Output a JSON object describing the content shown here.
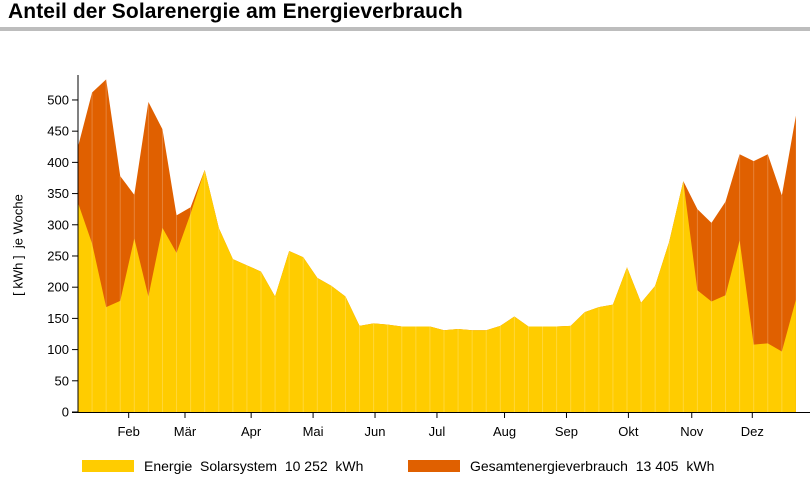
{
  "chart_data": {
    "type": "area",
    "title": "Anteil der Solarenergie am Energieverbrauch",
    "ylabel": "[ kWh ]  je Woche",
    "xlabel": "",
    "ylim": [
      0,
      540
    ],
    "yticks": [
      0,
      50,
      100,
      150,
      200,
      250,
      300,
      350,
      400,
      450,
      500
    ],
    "xlim": [
      1,
      53
    ],
    "month_ticks": [
      {
        "label": "Feb",
        "week": 4.6
      },
      {
        "label": "Mär",
        "week": 8.6
      },
      {
        "label": "Apr",
        "week": 13.3
      },
      {
        "label": "Mai",
        "week": 17.7
      },
      {
        "label": "Jun",
        "week": 22.1
      },
      {
        "label": "Jul",
        "week": 26.5
      },
      {
        "label": "Aug",
        "week": 31.3
      },
      {
        "label": "Sep",
        "week": 35.7
      },
      {
        "label": "Okt",
        "week": 40.1
      },
      {
        "label": "Nov",
        "week": 44.6
      },
      {
        "label": "Dez",
        "week": 48.9
      }
    ],
    "grid": false,
    "legend_position": "bottom",
    "series": [
      {
        "name": "Energie  Solarsystem  10 252  kWh",
        "color": "#ffcc00",
        "values": [
          335,
          270,
          168,
          178,
          278,
          185,
          295,
          255,
          318,
          388,
          295,
          245,
          235,
          225,
          185,
          258,
          248,
          215,
          202,
          185,
          138,
          142,
          140,
          137,
          137,
          137,
          131,
          133,
          131,
          131,
          138,
          153,
          137,
          137,
          137,
          138,
          160,
          168,
          172,
          232,
          175,
          202,
          273,
          370,
          195,
          177,
          187,
          275,
          108,
          110,
          97,
          180
        ]
      },
      {
        "name": "Gesamtenergieverbrauch  13 405  kWh",
        "color": "#e06000",
        "values": [
          425,
          512,
          533,
          378,
          348,
          497,
          453,
          315,
          328,
          388,
          295,
          245,
          235,
          225,
          185,
          258,
          248,
          215,
          202,
          185,
          138,
          142,
          140,
          137,
          137,
          137,
          131,
          133,
          131,
          131,
          138,
          153,
          137,
          137,
          137,
          138,
          160,
          168,
          172,
          232,
          175,
          202,
          273,
          370,
          325,
          303,
          337,
          413,
          402,
          413,
          347,
          475
        ]
      }
    ]
  }
}
